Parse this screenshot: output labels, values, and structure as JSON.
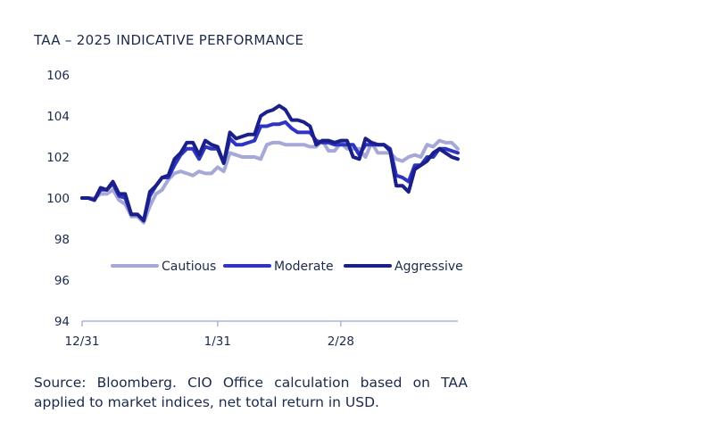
{
  "chart_data": {
    "type": "line",
    "title": "TAA – 2025 INDICATIVE PERFORMANCE",
    "xlabel": "",
    "ylabel": "",
    "ylim": [
      94,
      106
    ],
    "yticks": [
      94,
      96,
      98,
      100,
      102,
      104,
      106
    ],
    "xticks": [
      "12/31",
      "1/31",
      "2/28"
    ],
    "x": [
      "12/31",
      "1/2",
      "1/3",
      "1/6",
      "1/7",
      "1/8",
      "1/9",
      "1/10",
      "1/13",
      "1/14",
      "1/15",
      "1/16",
      "1/17",
      "1/20",
      "1/21",
      "1/22",
      "1/23",
      "1/24",
      "1/27",
      "1/28",
      "1/29",
      "1/30",
      "1/31",
      "2/3",
      "2/4",
      "2/5",
      "2/6",
      "2/7",
      "2/10",
      "2/11",
      "2/12",
      "2/13",
      "2/14",
      "2/17",
      "2/18",
      "2/19",
      "2/20",
      "2/21",
      "2/24",
      "2/25",
      "2/26",
      "2/27",
      "2/28",
      "3/3",
      "3/4",
      "3/5",
      "3/6",
      "3/7",
      "3/10",
      "3/11",
      "3/12",
      "3/13",
      "3/14",
      "3/17",
      "3/18",
      "3/19",
      "3/20",
      "3/21",
      "3/24",
      "3/25",
      "3/26",
      "3/27"
    ],
    "legend_position": "center",
    "grid": false,
    "series": [
      {
        "name": "Cautious",
        "color": "#a6a8d8",
        "values": [
          100.0,
          100.0,
          100.0,
          100.2,
          100.2,
          100.4,
          99.9,
          99.7,
          99.1,
          99.1,
          98.8,
          99.6,
          100.2,
          100.4,
          100.9,
          101.2,
          101.3,
          101.2,
          101.1,
          101.3,
          101.2,
          101.2,
          101.5,
          101.3,
          102.2,
          102.1,
          102.0,
          102.0,
          102.0,
          101.9,
          102.6,
          102.7,
          102.7,
          102.6,
          102.6,
          102.6,
          102.6,
          102.5,
          102.5,
          102.8,
          102.3,
          102.3,
          102.7,
          102.4,
          102.4,
          102.4,
          102.0,
          102.7,
          102.2,
          102.2,
          102.2,
          101.9,
          101.8,
          102.0,
          102.1,
          102.0,
          102.6,
          102.5,
          102.8,
          102.7,
          102.7,
          102.4
        ]
      },
      {
        "name": "Moderate",
        "color": "#2d35c2",
        "values": [
          100.0,
          100.0,
          99.9,
          100.4,
          100.4,
          100.7,
          100.1,
          100.0,
          99.2,
          99.2,
          98.9,
          100.1,
          100.6,
          101.0,
          101.0,
          101.6,
          102.1,
          102.4,
          102.4,
          101.9,
          102.5,
          102.4,
          102.4,
          101.7,
          102.9,
          102.6,
          102.6,
          102.7,
          102.8,
          103.5,
          103.5,
          103.6,
          103.6,
          103.7,
          103.4,
          103.2,
          103.2,
          103.2,
          102.8,
          102.7,
          102.7,
          102.6,
          102.6,
          102.6,
          102.6,
          102.1,
          102.6,
          102.6,
          102.6,
          102.6,
          102.4,
          101.1,
          101.0,
          100.8,
          101.6,
          101.6,
          102.0,
          102.0,
          102.4,
          102.4,
          102.3,
          102.2
        ]
      },
      {
        "name": "Aggressive",
        "color": "#1b1f8a",
        "values": [
          100.0,
          100.0,
          99.9,
          100.5,
          100.4,
          100.8,
          100.2,
          100.2,
          99.2,
          99.2,
          98.9,
          100.3,
          100.6,
          101.0,
          101.1,
          101.9,
          102.2,
          102.7,
          102.7,
          102.1,
          102.8,
          102.6,
          102.5,
          101.7,
          103.2,
          102.9,
          103.0,
          103.1,
          103.1,
          104.0,
          104.2,
          104.3,
          104.5,
          104.3,
          103.8,
          103.8,
          103.7,
          103.5,
          102.6,
          102.8,
          102.8,
          102.7,
          102.8,
          102.8,
          102.0,
          101.9,
          102.9,
          102.7,
          102.6,
          102.6,
          102.3,
          100.6,
          100.6,
          100.3,
          101.4,
          101.6,
          101.8,
          102.2,
          102.4,
          102.2,
          102.0,
          101.9
        ]
      }
    ]
  },
  "source_text": "Source: Bloomberg. CIO Office calculation based on TAA applied to market indices, net total return in USD."
}
